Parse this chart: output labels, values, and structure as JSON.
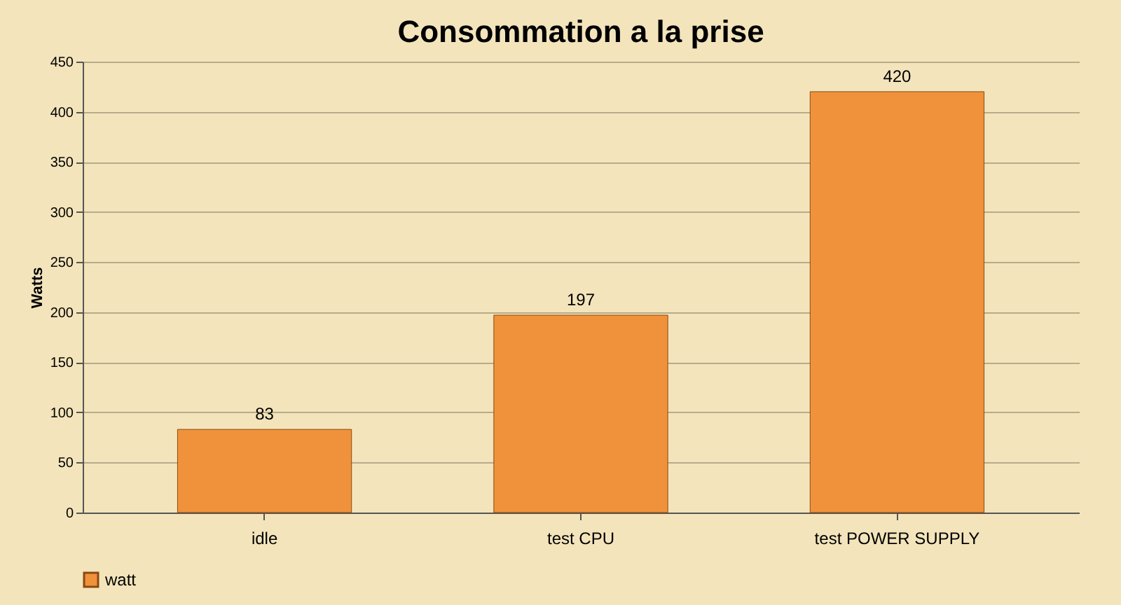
{
  "chart_data": {
    "type": "bar",
    "title": "Consommation a la prise",
    "ylabel": "Watts",
    "categories": [
      "idle",
      "test CPU",
      "test POWER SUPPLY"
    ],
    "series": [
      {
        "name": "watt",
        "color": "#f0923c",
        "values": [
          83,
          197,
          420
        ]
      }
    ],
    "ylim": [
      0,
      450
    ],
    "yticks": [
      0,
      50,
      100,
      150,
      200,
      250,
      300,
      350,
      400,
      450
    ],
    "grid": "y",
    "legend": "bottom",
    "data_labels": true
  }
}
